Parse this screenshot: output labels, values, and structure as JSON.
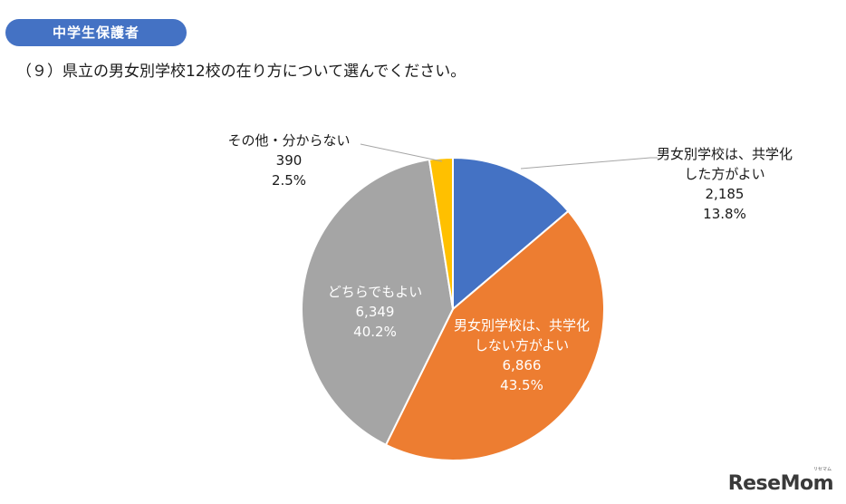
{
  "badge": {
    "label": "中学生保護者"
  },
  "question": {
    "text": "（９）県立の男女別学校12校の在り方について選んでください。"
  },
  "chart_data": {
    "type": "pie",
    "title": "",
    "slices": [
      {
        "label_lines": [
          "男女別学校は、共学化",
          "した方がよい"
        ],
        "count": "2,185",
        "percent": "13.8%",
        "value": 13.8,
        "color": "#4472c4",
        "label_color": "#1a1a1a"
      },
      {
        "label_lines": [
          "男女別学校は、共学化",
          "しない方がよい"
        ],
        "count": "6,866",
        "percent": "43.5%",
        "value": 43.5,
        "color": "#ed7d31",
        "label_color": "#ffffff"
      },
      {
        "label_lines": [
          "どちらでもよい"
        ],
        "count": "6,349",
        "percent": "40.2%",
        "value": 40.2,
        "color": "#a5a5a5",
        "label_color": "#ffffff"
      },
      {
        "label_lines": [
          "その他・分からない"
        ],
        "count": "390",
        "percent": "2.5%",
        "value": 2.5,
        "color": "#ffc000",
        "label_color": "#1a1a1a"
      }
    ],
    "start_angle": "12 o'clock",
    "direction": "clockwise",
    "legend": "none (data labels)"
  },
  "logo": {
    "text": "ReseMom",
    "kana": "リセマム"
  }
}
